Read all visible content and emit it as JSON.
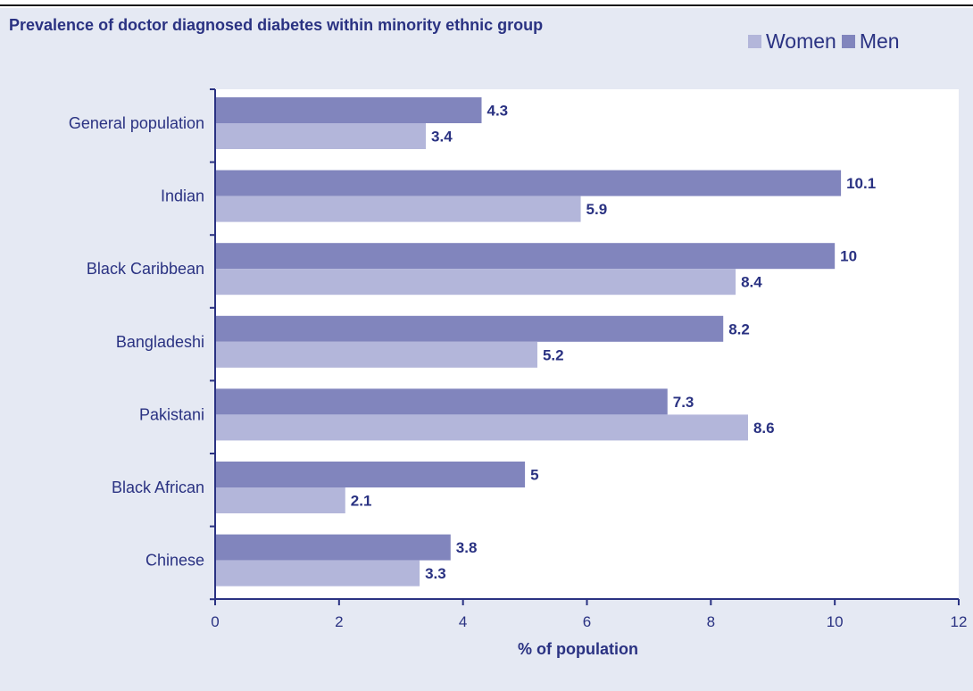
{
  "chart_data": {
    "type": "bar",
    "orientation": "horizontal",
    "title": "Prevalence of doctor diagnosed diabetes within minority ethnic group",
    "xlabel": "% of population",
    "ylabel": "",
    "categories": [
      "General population",
      "Indian",
      "Black Caribbean",
      "Bangladeshi",
      "Pakistani",
      "Black African",
      "Chinese"
    ],
    "series": [
      {
        "name": "Men",
        "color": "#8185bd",
        "values": [
          4.3,
          10.1,
          10,
          8.2,
          7.3,
          5,
          3.8
        ],
        "labels": [
          "4.3",
          "10.1",
          "10",
          "8.2",
          "7.3",
          "5",
          "3.8"
        ]
      },
      {
        "name": "Women",
        "color": "#b3b6da",
        "values": [
          3.4,
          5.9,
          8.4,
          5.2,
          8.6,
          2.1,
          3.3
        ],
        "labels": [
          "3.4",
          "5.9",
          "8.4",
          "5.2",
          "8.6",
          "2.1",
          "3.3"
        ]
      }
    ],
    "xlim": [
      0,
      12
    ],
    "xticks": [
      "0",
      "2",
      "4",
      "6",
      "8",
      "10",
      "12"
    ],
    "grid": false,
    "legend_position": "top-right",
    "legend": [
      {
        "name": "Women",
        "color": "#b3b6da"
      },
      {
        "name": "Men",
        "color": "#8185bd"
      }
    ]
  },
  "colors": {
    "text": "#2a3282",
    "panel_background": "#e5e9f3",
    "plot_background": "#ffffff"
  }
}
